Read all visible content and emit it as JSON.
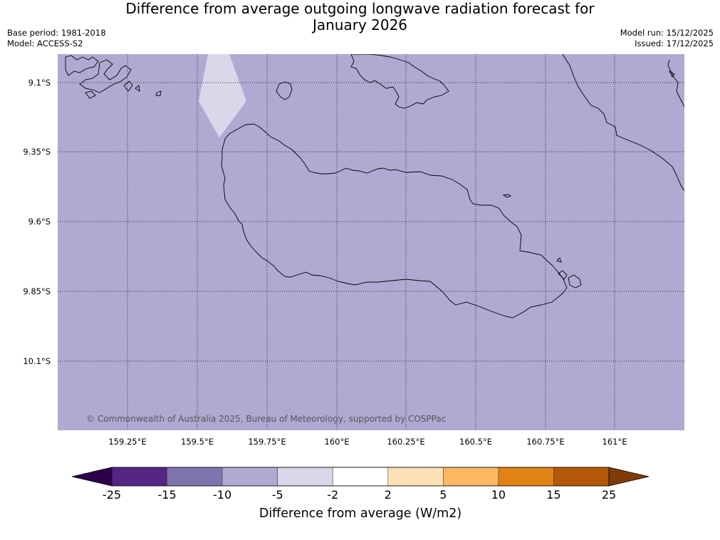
{
  "title": {
    "line1": "Difference from average outgoing longwave radiation forecast for",
    "line2": "January 2026"
  },
  "info_left": {
    "base_period": "Base period: 1981-2018",
    "model": "Model: ACCESS-S2"
  },
  "info_right": {
    "model_run": "Model run: 15/12/2025",
    "issued": "Issued: 17/12/2025"
  },
  "map": {
    "lat_ticks": [
      "9.1°S",
      "9.35°S",
      "9.6°S",
      "9.85°S",
      "10.1°S"
    ],
    "lon_ticks": [
      "159.25°E",
      "159.5°E",
      "159.75°E",
      "160°E",
      "160.25°E",
      "160.5°E",
      "160.75°E",
      "161°E"
    ],
    "copyright": "© Commonwealth of Australia 2025, Bureau of Meteorology, supported by COSPPac",
    "fill_color": "#b0a9d2",
    "patch_color": "#d9d8ea"
  },
  "colorbar": {
    "title": "Difference from average (W/m2)",
    "labels": [
      "-25",
      "-15",
      "-10",
      "-5",
      "-2",
      "2",
      "5",
      "10",
      "15",
      "25"
    ],
    "colors": [
      "#552585",
      "#8074ae",
      "#b0a9d2",
      "#d9d8ea",
      "#ffffff",
      "#fee0b6",
      "#fdb863",
      "#e08214",
      "#b35806"
    ],
    "extend_low_color": "#2d004b",
    "extend_high_color": "#7f3b08"
  }
}
